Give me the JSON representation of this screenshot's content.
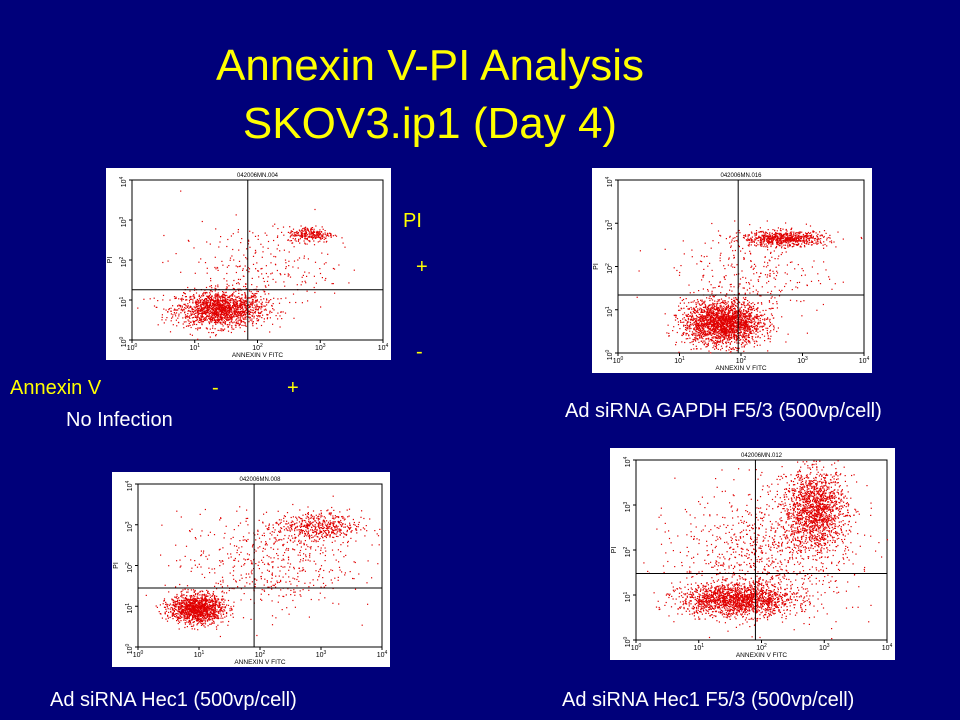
{
  "slide": {
    "title_line1": "Annexin V-PI Analysis",
    "title_line2": "SKOV3.ip1 (Day 4)",
    "legend": {
      "pi_label": "PI",
      "pi_plus": "+",
      "pi_minus": "-",
      "annexin_label": "Annexin V",
      "annexin_minus": "-",
      "annexin_plus": "+"
    }
  },
  "colors": {
    "background": "#00007a",
    "title": "#ffff00",
    "dots": "#e00000"
  },
  "chart_data": [
    {
      "type": "scatter",
      "file_id": "042006MN.004",
      "caption": "No Infection",
      "xlabel": "ANNEXIN V FITC",
      "ylabel": "PI",
      "log_scale": true,
      "xlim": [
        1,
        10000
      ],
      "ylim": [
        1,
        10000
      ],
      "ticks": [
        {
          "base": "10",
          "exp": "0"
        },
        {
          "base": "10",
          "exp": "1"
        },
        {
          "base": "10",
          "exp": "2"
        },
        {
          "base": "10",
          "exp": "3"
        },
        {
          "base": "10",
          "exp": "4"
        }
      ],
      "quadrant_gate": {
        "x": 70,
        "y": 18
      },
      "clusters": [
        {
          "x": 25,
          "y": 6,
          "sx": 0.35,
          "sy": 0.22,
          "n": 1600
        },
        {
          "x": 700,
          "y": 450,
          "sx": 0.18,
          "sy": 0.1,
          "n": 260
        },
        {
          "x": 90,
          "y": 60,
          "sx": 0.6,
          "sy": 0.55,
          "n": 260
        }
      ]
    },
    {
      "type": "scatter",
      "file_id": "042006MN.016",
      "caption": "Ad siRNA GAPDH F5/3 (500vp/cell)",
      "xlabel": "ANNEXIN V FITC",
      "ylabel": "PI",
      "log_scale": true,
      "xlim": [
        1,
        10000
      ],
      "ylim": [
        1,
        10000
      ],
      "ticks": [
        {
          "base": "10",
          "exp": "0"
        },
        {
          "base": "10",
          "exp": "1"
        },
        {
          "base": "10",
          "exp": "2"
        },
        {
          "base": "10",
          "exp": "3"
        },
        {
          "base": "10",
          "exp": "4"
        }
      ],
      "quadrant_gate": {
        "x": 90,
        "y": 22
      },
      "clusters": [
        {
          "x": 50,
          "y": 5,
          "sx": 0.32,
          "sy": 0.25,
          "n": 2200
        },
        {
          "x": 500,
          "y": 450,
          "sx": 0.35,
          "sy": 0.09,
          "n": 700
        },
        {
          "x": 150,
          "y": 60,
          "sx": 0.6,
          "sy": 0.5,
          "n": 300
        }
      ]
    },
    {
      "type": "scatter",
      "file_id": "042006MN.008",
      "caption": "Ad siRNA Hec1 (500vp/cell)",
      "xlabel": "ANNEXIN V FITC",
      "ylabel": "PI",
      "log_scale": true,
      "xlim": [
        1,
        10000
      ],
      "ylim": [
        1,
        10000
      ],
      "ticks": [
        {
          "base": "10",
          "exp": "0"
        },
        {
          "base": "10",
          "exp": "1"
        },
        {
          "base": "10",
          "exp": "2"
        },
        {
          "base": "10",
          "exp": "3"
        },
        {
          "base": "10",
          "exp": "4"
        }
      ],
      "quadrant_gate": {
        "x": 80,
        "y": 28
      },
      "clusters": [
        {
          "x": 9,
          "y": 9,
          "sx": 0.22,
          "sy": 0.18,
          "n": 1300
        },
        {
          "x": 900,
          "y": 900,
          "sx": 0.35,
          "sy": 0.2,
          "n": 500
        },
        {
          "x": 120,
          "y": 120,
          "sx": 0.7,
          "sy": 0.6,
          "n": 500
        }
      ]
    },
    {
      "type": "scatter",
      "file_id": "042006MN.012",
      "caption": "Ad siRNA Hec1 F5/3 (500vp/cell)",
      "xlabel": "ANNEXIN V FITC",
      "ylabel": "PI",
      "log_scale": true,
      "xlim": [
        1,
        10000
      ],
      "ylim": [
        1,
        10000
      ],
      "ticks": [
        {
          "base": "10",
          "exp": "0"
        },
        {
          "base": "10",
          "exp": "1"
        },
        {
          "base": "10",
          "exp": "2"
        },
        {
          "base": "10",
          "exp": "3"
        },
        {
          "base": "10",
          "exp": "4"
        }
      ],
      "quadrant_gate": {
        "x": 80,
        "y": 30
      },
      "clusters": [
        {
          "x": 40,
          "y": 8,
          "sx": 0.45,
          "sy": 0.18,
          "n": 1700
        },
        {
          "x": 700,
          "y": 800,
          "sx": 0.25,
          "sy": 0.45,
          "n": 1500
        },
        {
          "x": 120,
          "y": 100,
          "sx": 0.7,
          "sy": 0.7,
          "n": 900
        }
      ]
    }
  ]
}
